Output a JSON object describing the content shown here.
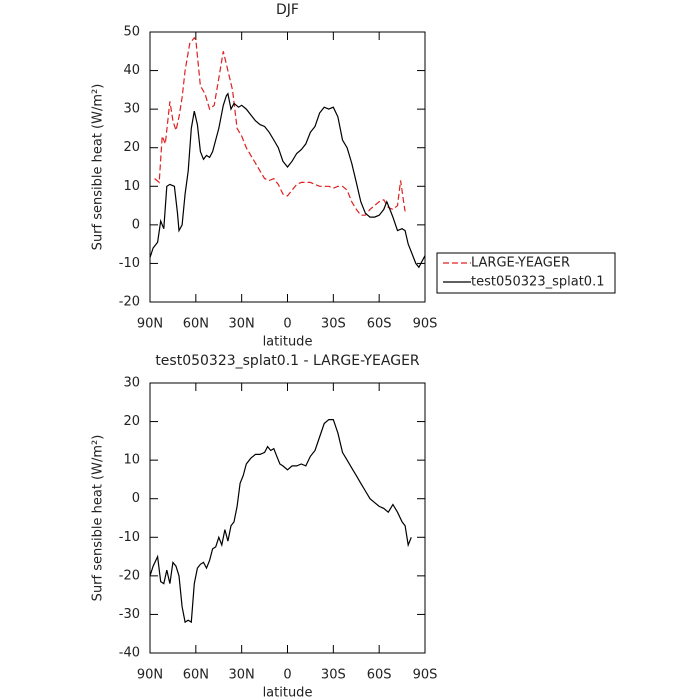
{
  "chart_data": [
    {
      "type": "line",
      "title": "DJF",
      "xlabel": "latitude",
      "ylabel": "Surf sensible heat (W/m²)",
      "xlim": [
        90,
        -90
      ],
      "xticks": [
        {
          "value": 90,
          "label": "90N"
        },
        {
          "value": 60,
          "label": "60N"
        },
        {
          "value": 30,
          "label": "30N"
        },
        0,
        {
          "value": -30,
          "label": "30S"
        },
        {
          "value": -60,
          "label": "60S"
        },
        {
          "value": -90,
          "label": "90S"
        }
      ],
      "ylim": [
        -20,
        50
      ],
      "yticks": [
        -20,
        -10,
        0,
        10,
        20,
        30,
        40,
        50
      ],
      "legend": "right",
      "series": [
        {
          "name": "LARGE-YEAGER",
          "color": "#e02020",
          "dash": true,
          "x": [
            87,
            84,
            82,
            80,
            77,
            75,
            73,
            71,
            69,
            67,
            64,
            61,
            60,
            57,
            54,
            51,
            48,
            45,
            42,
            39,
            36,
            33,
            30,
            27,
            24,
            21,
            18,
            15,
            12,
            9,
            6,
            3,
            0,
            -3,
            -6,
            -9,
            -12,
            -15,
            -18,
            -21,
            -24,
            -27,
            -30,
            -33,
            -36,
            -39,
            -42,
            -45,
            -48,
            -51,
            -54,
            -57,
            -60,
            -63,
            -66,
            -69,
            -72,
            -74,
            -76,
            -77
          ],
          "values": [
            12,
            11,
            23,
            21,
            32,
            27,
            24.5,
            28,
            33,
            40,
            47,
            48.5,
            48,
            36,
            34,
            30,
            31,
            38,
            45,
            40,
            35,
            25,
            23,
            20,
            18,
            16,
            14,
            12,
            11.5,
            12,
            10.5,
            8,
            7.5,
            9,
            10.5,
            11,
            11,
            11,
            10.5,
            10,
            10,
            10,
            9.5,
            10,
            10,
            9,
            6,
            4,
            2.5,
            2.5,
            4,
            5,
            6,
            6.5,
            4.5,
            4,
            5,
            11.5,
            6,
            3.5
          ]
        },
        {
          "name": "test050323_splat0.1",
          "color": "#000000",
          "dash": false,
          "x": [
            90,
            88,
            85,
            83,
            81,
            79,
            77,
            74,
            72,
            71,
            69,
            67,
            65,
            63,
            61,
            59,
            57,
            55,
            53,
            51,
            49,
            47,
            45,
            42,
            40,
            39,
            37,
            35,
            32,
            30,
            27,
            24,
            21,
            18,
            15,
            12,
            9,
            6,
            3,
            0,
            -3,
            -6,
            -9,
            -12,
            -15,
            -18,
            -21,
            -24,
            -27,
            -30,
            -33,
            -36,
            -39,
            -42,
            -45,
            -48,
            -51,
            -54,
            -57,
            -60,
            -63,
            -65,
            -67,
            -69,
            -72,
            -75,
            -77,
            -79,
            -81,
            -84,
            -86,
            -88,
            -90
          ],
          "values": [
            -8.5,
            -6,
            -4.5,
            1,
            -1,
            10,
            10.5,
            10,
            3,
            -1.5,
            0,
            8,
            14,
            25,
            29.5,
            26,
            19,
            17,
            18,
            17.5,
            19,
            22,
            25,
            31,
            33.5,
            34,
            30,
            31.5,
            30.5,
            31,
            30,
            28.5,
            27,
            26,
            25.5,
            24,
            22,
            20,
            16.5,
            15,
            16.5,
            18.5,
            19.5,
            21,
            24,
            25.5,
            29,
            30.5,
            30,
            30.5,
            28,
            22,
            20,
            16,
            11,
            6,
            3,
            2,
            2,
            2.5,
            4,
            6,
            4,
            2,
            -1.5,
            -1,
            -1.5,
            -5,
            -7,
            -10,
            -11,
            -9.5,
            -8
          ]
        }
      ]
    },
    {
      "type": "line",
      "title": "test050323_splat0.1 - LARGE-YEAGER",
      "xlabel": "latitude",
      "ylabel": "Surf sensible heat (W/m²)",
      "xlim": [
        90,
        -90
      ],
      "xticks": [
        {
          "value": 90,
          "label": "90N"
        },
        {
          "value": 60,
          "label": "60N"
        },
        {
          "value": 30,
          "label": "30N"
        },
        0,
        {
          "value": -30,
          "label": "30S"
        },
        {
          "value": -60,
          "label": "60S"
        },
        {
          "value": -90,
          "label": "90S"
        }
      ],
      "ylim": [
        -40,
        30
      ],
      "yticks": [
        -40,
        -30,
        -20,
        -10,
        0,
        10,
        20,
        30
      ],
      "series": [
        {
          "color": "#000000",
          "dash": false,
          "x": [
            90,
            88,
            85,
            83,
            81,
            79,
            77,
            75,
            73,
            71,
            69,
            67,
            65,
            63,
            61,
            59,
            57,
            55,
            53,
            51,
            49,
            47,
            45,
            43,
            41,
            39,
            37,
            35,
            33,
            31,
            29,
            27,
            24,
            21,
            18,
            15,
            13,
            11,
            9,
            7,
            5,
            3,
            0,
            -3,
            -6,
            -9,
            -12,
            -15,
            -18,
            -21,
            -24,
            -27,
            -30,
            -33,
            -36,
            -39,
            -42,
            -45,
            -48,
            -51,
            -54,
            -57,
            -60,
            -63,
            -66,
            -69,
            -72,
            -75,
            -77,
            -79,
            -81
          ],
          "values": [
            -20,
            -17.5,
            -15,
            -21.5,
            -22,
            -18.5,
            -22,
            -16.5,
            -17.5,
            -20,
            -28,
            -32,
            -31.5,
            -32,
            -22,
            -18,
            -17,
            -16.5,
            -18,
            -16,
            -13,
            -12.5,
            -10,
            -12,
            -8,
            -11,
            -7,
            -6,
            -2,
            4,
            6,
            9,
            10.5,
            11.5,
            11.5,
            12,
            13.5,
            12.5,
            13,
            11,
            9,
            8.5,
            7.5,
            8.5,
            8.5,
            9,
            8.5,
            11,
            12.5,
            16,
            19.5,
            20.5,
            20.5,
            17,
            12,
            10,
            8,
            6,
            4,
            2,
            0,
            -1,
            -2,
            -2.5,
            -3.5,
            -1.5,
            -3.5,
            -6,
            -7,
            -12,
            -10
          ]
        }
      ]
    }
  ]
}
